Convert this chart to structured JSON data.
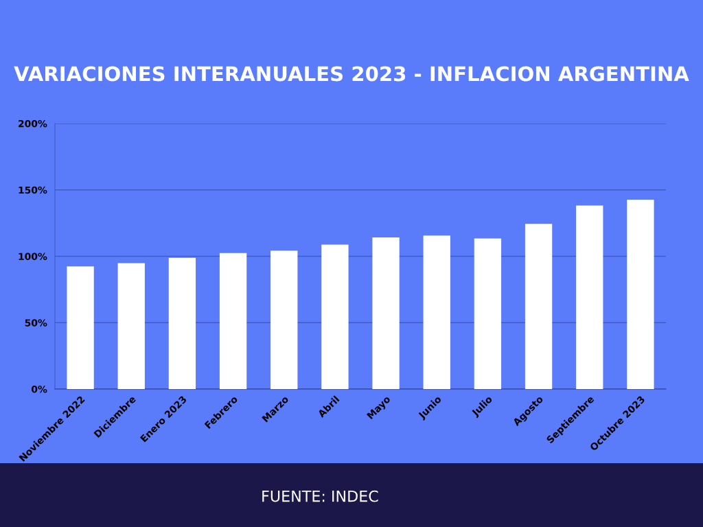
{
  "chart_data": {
    "type": "bar",
    "title": "VARIACIONES INTERANUALES 2023 - INFLACION ARGENTINA",
    "categories": [
      "Noviembre 2022",
      "Diciembre",
      "Enero 2023",
      "Febrero",
      "Marzo",
      "Abril",
      "Mayo",
      "Junio",
      "Julio",
      "Agosto",
      "Septiembre",
      "Octubre 2023"
    ],
    "values": [
      92.4,
      94.8,
      98.8,
      102.5,
      104.3,
      108.8,
      114.2,
      115.6,
      113.4,
      124.4,
      138.3,
      142.7
    ],
    "color": "#ffffff",
    "ylim": [
      0,
      200
    ],
    "yticks": [
      {
        "value": 0,
        "label": "0%"
      },
      {
        "value": 50,
        "label": "50%"
      },
      {
        "value": 100,
        "label": "100%"
      },
      {
        "value": 150,
        "label": "150%"
      },
      {
        "value": 200,
        "label": "200%"
      }
    ],
    "grid": "y",
    "annotations": [
      "FUENTE: INDEC"
    ]
  }
}
